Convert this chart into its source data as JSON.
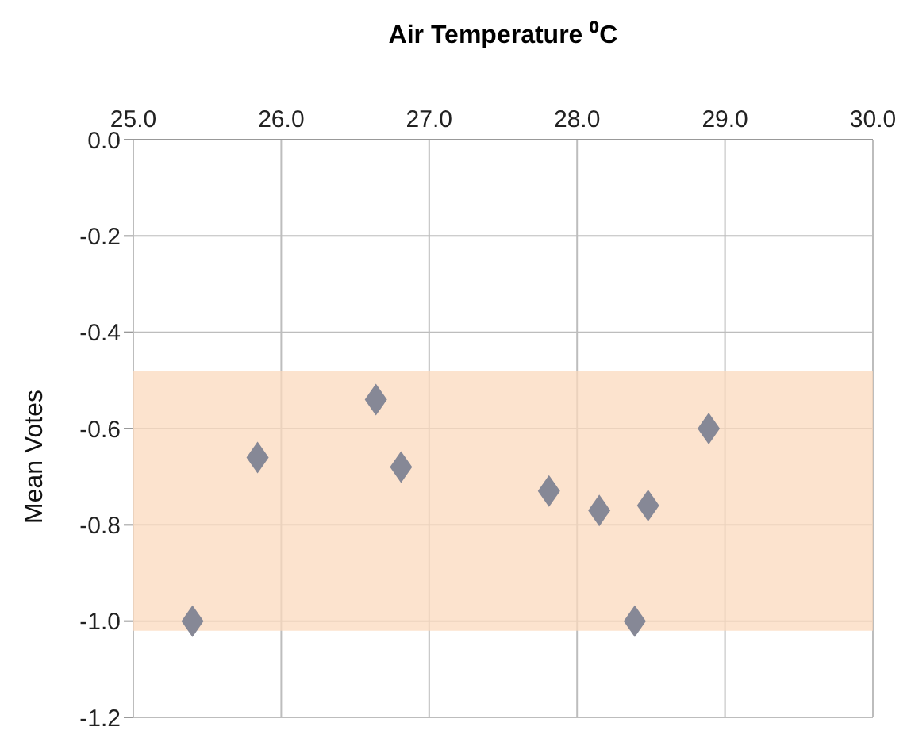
{
  "chart_data": {
    "type": "scatter",
    "xlabel": "Air Temperature ⁰C",
    "ylabel": "Mean Votes",
    "x": [
      25.4,
      25.84,
      26.64,
      26.81,
      27.81,
      28.15,
      28.39,
      28.48,
      28.89
    ],
    "series": [
      {
        "color": "#868896",
        "values": [
          -1.0,
          -0.66,
          -0.54,
          -0.68,
          -0.73,
          -0.77,
          -1.0,
          -0.76,
          -0.6
        ]
      }
    ],
    "marker": "diamond",
    "grid": true,
    "legend": false,
    "xlim": [
      25,
      30
    ],
    "xticks": [
      {
        "value": 25,
        "label": "25.0"
      },
      {
        "value": 26,
        "label": "26.0"
      },
      {
        "value": 27,
        "label": "27.0"
      },
      {
        "value": 28,
        "label": "28.0"
      },
      {
        "value": 29,
        "label": "29.0"
      },
      {
        "value": 30,
        "label": "30.0"
      }
    ],
    "ylim": [
      -1.2,
      0
    ],
    "yticks": [
      {
        "value": 0,
        "label": "0.0"
      },
      {
        "value": -0.2,
        "label": "-0.2"
      },
      {
        "value": -0.4,
        "label": "-0.4"
      },
      {
        "value": -0.6,
        "label": "-0.6"
      },
      {
        "value": -0.8,
        "label": "-0.8"
      },
      {
        "value": -1.0,
        "label": "-1.0"
      },
      {
        "value": -1.2,
        "label": "-1.2"
      }
    ],
    "bands": [
      {
        "axis": "y",
        "from": -0.48,
        "to": -1.02,
        "color": "#fbd9bd"
      }
    ]
  }
}
